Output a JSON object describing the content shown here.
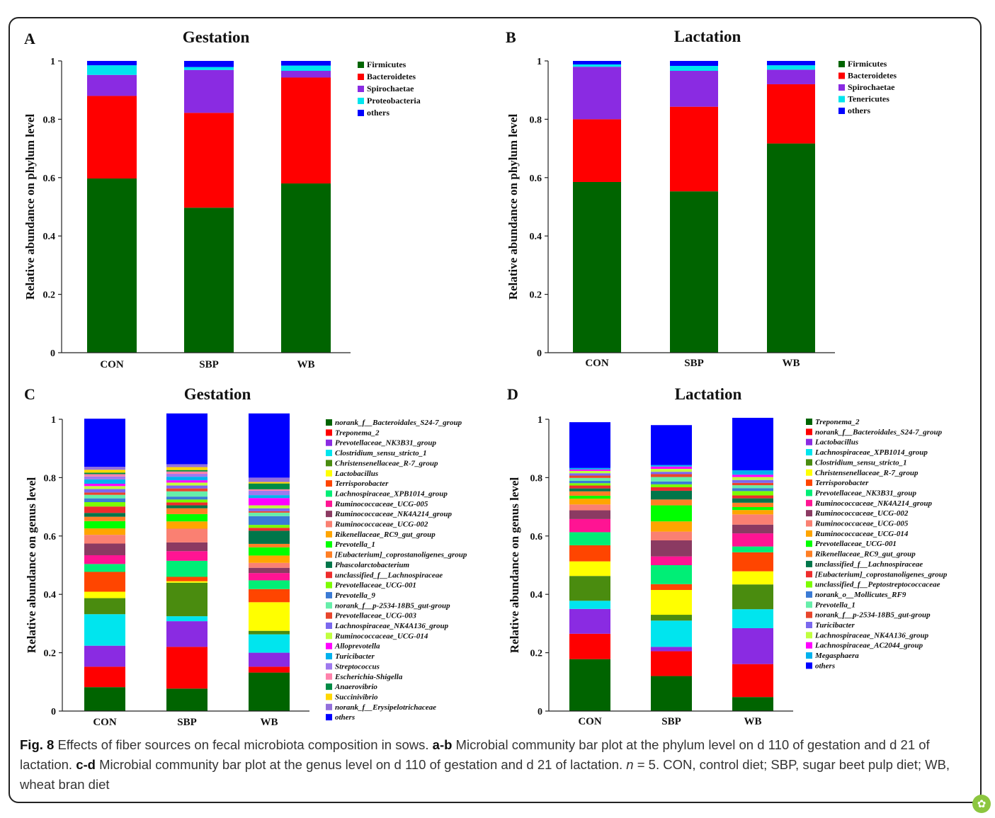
{
  "caption": {
    "fig": "Fig. 8",
    "t1": " Effects of fiber sources on fecal microbiota composition in sows. ",
    "ab": "a-b",
    "t2": " Microbial community bar plot at the phylum level on d 110 of gestation and d 21 of lactation. ",
    "cd": "c-d",
    "t3": " Microbial community bar plot at the genus level on d 110 of gestation and d 21 of lactation. ",
    "n": "n",
    "t4": " = 5. CON, control diet; SBP, sugar beet pulp diet; WB, wheat bran diet"
  },
  "badge_icon": "springer-leaf-icon",
  "chart_data": [
    {
      "panel": "A",
      "type": "bar",
      "stacked": true,
      "title": "Gestation",
      "ylabel": "Relative abundance on phylum level",
      "ylim": [
        0,
        1
      ],
      "yticks": [
        "0",
        "0.2",
        "0.4",
        "0.6",
        "0.8",
        "1"
      ],
      "categories": [
        "CON",
        "SBP",
        "WB"
      ],
      "legend_italic": false,
      "legend_position": "right",
      "series": [
        {
          "name": "Firmicutes",
          "color": "#006400",
          "values": [
            0.597,
            0.497,
            0.58
          ]
        },
        {
          "name": "Bacteroidetes",
          "color": "#ff0000",
          "values": [
            0.283,
            0.325,
            0.363
          ]
        },
        {
          "name": "Spirochaetae",
          "color": "#8a2be2",
          "values": [
            0.072,
            0.147,
            0.023
          ]
        },
        {
          "name": "Proteobacteria",
          "color": "#00e5ee",
          "values": [
            0.033,
            0.01,
            0.018
          ]
        },
        {
          "name": "others",
          "color": "#0000ff",
          "values": [
            0.015,
            0.021,
            0.016
          ]
        }
      ]
    },
    {
      "panel": "B",
      "type": "bar",
      "stacked": true,
      "title": "Lactation",
      "ylabel": "Relative abundance on phylum level",
      "ylim": [
        0,
        1
      ],
      "yticks": [
        "0",
        "0.2",
        "0.4",
        "0.6",
        "0.8",
        "1"
      ],
      "categories": [
        "CON",
        "SBP",
        "WB"
      ],
      "legend_italic": false,
      "legend_position": "right",
      "series": [
        {
          "name": "Firmicutes",
          "color": "#006400",
          "values": [
            0.585,
            0.553,
            0.717
          ]
        },
        {
          "name": "Bacteroidetes",
          "color": "#ff0000",
          "values": [
            0.215,
            0.29,
            0.203
          ]
        },
        {
          "name": "Spirochaetae",
          "color": "#8a2be2",
          "values": [
            0.18,
            0.123,
            0.05
          ]
        },
        {
          "name": "Tenericutes",
          "color": "#00e5ee",
          "values": [
            0.008,
            0.017,
            0.015
          ]
        },
        {
          "name": "others",
          "color": "#0000ff",
          "values": [
            0.012,
            0.017,
            0.015
          ]
        }
      ]
    },
    {
      "panel": "C",
      "type": "bar",
      "stacked": true,
      "title": "Gestation",
      "ylabel": "Relative abundance on genus level",
      "ylim": [
        0,
        1
      ],
      "yticks": [
        "0",
        "0.2",
        "0.4",
        "0.6",
        "0.8",
        "1"
      ],
      "categories": [
        "CON",
        "SBP",
        "WB"
      ],
      "legend_italic": true,
      "legend_position": "right",
      "series": [
        {
          "name": "norank_f__Bacteroidales_S24-7_group",
          "color": "#006400",
          "values": [
            0.082,
            0.077,
            0.132
          ]
        },
        {
          "name": "Treponema_2",
          "color": "#ff0000",
          "values": [
            0.07,
            0.143,
            0.02
          ]
        },
        {
          "name": "Prevotellaceae_NK3B31_group",
          "color": "#8a2be2",
          "values": [
            0.072,
            0.088,
            0.048
          ]
        },
        {
          "name": "Clostridium_sensu_stricto_1",
          "color": "#00e5ee",
          "values": [
            0.108,
            0.017,
            0.063
          ]
        },
        {
          "name": "Christensenellaceae_R-7_group",
          "color": "#4a8c0f",
          "values": [
            0.055,
            0.115,
            0.012
          ]
        },
        {
          "name": "Lactobacillus",
          "color": "#ffff00",
          "values": [
            0.022,
            0.005,
            0.098
          ]
        },
        {
          "name": "Terrisporobacter",
          "color": "#ff4500",
          "values": [
            0.068,
            0.015,
            0.045
          ]
        },
        {
          "name": "Lachnospiraceae_XPB1014_group",
          "color": "#00ee76",
          "values": [
            0.027,
            0.055,
            0.03
          ]
        },
        {
          "name": "Ruminococcaceae_UCG-005",
          "color": "#ff1493",
          "values": [
            0.03,
            0.033,
            0.025
          ]
        },
        {
          "name": "Ruminococcaceae_NK4A214_group",
          "color": "#8b3a62",
          "values": [
            0.04,
            0.03,
            0.018
          ]
        },
        {
          "name": "Ruminococcaceae_UCG-002",
          "color": "#fa8072",
          "values": [
            0.03,
            0.047,
            0.017
          ]
        },
        {
          "name": "Rikenellaceae_RC9_gut_group",
          "color": "#ffa500",
          "values": [
            0.022,
            0.025,
            0.025
          ]
        },
        {
          "name": "Prevotella_1",
          "color": "#00ff00",
          "values": [
            0.025,
            0.025,
            0.028
          ]
        },
        {
          "name": "[Eubacterium]_coprostanoligenes_group",
          "color": "#ff7f24",
          "values": [
            0.015,
            0.02,
            0.012
          ]
        },
        {
          "name": "Phascolarctobacterium",
          "color": "#00764a",
          "values": [
            0.013,
            0.01,
            0.045
          ]
        },
        {
          "name": "unclassified_f__Lachnospiraceae",
          "color": "#ee2c2c",
          "values": [
            0.022,
            0.01,
            0.01
          ]
        },
        {
          "name": "Prevotellaceae_UCG-001",
          "color": "#7cfc00",
          "values": [
            0.015,
            0.01,
            0.01
          ]
        },
        {
          "name": "Prevotella_9",
          "color": "#3a7bd5",
          "values": [
            0.013,
            0.01,
            0.03
          ]
        },
        {
          "name": "norank_f__p-2534-18B5_gut-group",
          "color": "#66eeaa",
          "values": [
            0.012,
            0.018,
            0.012
          ]
        },
        {
          "name": "Prevotellaceae_UCG-003",
          "color": "#e8452c",
          "values": [
            0.008,
            0.01,
            0.005
          ]
        },
        {
          "name": "Lachnospiraceae_NK4A136_group",
          "color": "#7b68ee",
          "values": [
            0.012,
            0.01,
            0.01
          ]
        },
        {
          "name": "Ruminococcaceae_UCG-014",
          "color": "#c0ff3e",
          "values": [
            0.01,
            0.01,
            0.01
          ]
        },
        {
          "name": "Alloprevotella",
          "color": "#ff00ff",
          "values": [
            0.008,
            0.008,
            0.025
          ]
        },
        {
          "name": "Turicibacter",
          "color": "#00b2ee",
          "values": [
            0.015,
            0.012,
            0.01
          ]
        },
        {
          "name": "Streptococcus",
          "color": "#9f79ee",
          "values": [
            0.01,
            0.01,
            0.015
          ]
        },
        {
          "name": "Escherichia-Shigella",
          "color": "#ff82ab",
          "values": [
            0.008,
            0.008,
            0.005
          ]
        },
        {
          "name": "Anaerovibrio",
          "color": "#008b45",
          "values": [
            0.005,
            0.005,
            0.02
          ]
        },
        {
          "name": "Succinivibrio",
          "color": "#ffd700",
          "values": [
            0.01,
            0.01,
            0.005
          ]
        },
        {
          "name": "norank_f__Erysipelotrichaceae",
          "color": "#9370db",
          "values": [
            0.01,
            0.01,
            0.015
          ]
        },
        {
          "name": "others",
          "color": "#0000ff",
          "values": [
            0.165,
            0.174,
            0.22
          ]
        }
      ]
    },
    {
      "panel": "D",
      "type": "bar",
      "stacked": true,
      "title": "Lactation",
      "ylabel": "Relative abundance on genus level",
      "ylim": [
        0,
        1
      ],
      "yticks": [
        "0",
        "0.2",
        "0.4",
        "0.6",
        "0.8",
        "1"
      ],
      "categories": [
        "CON",
        "SBP",
        "WB"
      ],
      "legend_italic": true,
      "legend_position": "right",
      "series": [
        {
          "name": "Treponema_2",
          "color": "#006400",
          "values": [
            0.178,
            0.12,
            0.048
          ]
        },
        {
          "name": "norank_f__Bacteroidales_S24-7_group",
          "color": "#ff0000",
          "values": [
            0.087,
            0.085,
            0.113
          ]
        },
        {
          "name": "Lactobacillus",
          "color": "#8a2be2",
          "values": [
            0.085,
            0.015,
            0.123
          ]
        },
        {
          "name": "Lachnospiraceae_XPB1014_group",
          "color": "#00e5ee",
          "values": [
            0.028,
            0.09,
            0.065
          ]
        },
        {
          "name": "Clostridium_sensu_stricto_1",
          "color": "#4a8c0f",
          "values": [
            0.085,
            0.02,
            0.085
          ]
        },
        {
          "name": "Christensenellaceae_R-7_group",
          "color": "#ffff00",
          "values": [
            0.05,
            0.085,
            0.045
          ]
        },
        {
          "name": "Terrisporobacter",
          "color": "#ff4500",
          "values": [
            0.055,
            0.02,
            0.065
          ]
        },
        {
          "name": "Prevotellaceae_NK3B31_group",
          "color": "#00ee76",
          "values": [
            0.045,
            0.065,
            0.02
          ]
        },
        {
          "name": "Ruminococcaceae_NK4A214_group",
          "color": "#ff1493",
          "values": [
            0.045,
            0.03,
            0.045
          ]
        },
        {
          "name": "Ruminococcaceae_UCG-002",
          "color": "#8b3a62",
          "values": [
            0.03,
            0.055,
            0.03
          ]
        },
        {
          "name": "Ruminococcaceae_UCG-005",
          "color": "#fa8072",
          "values": [
            0.02,
            0.03,
            0.035
          ]
        },
        {
          "name": "Ruminococcaceae_UCG-014",
          "color": "#ffa500",
          "values": [
            0.02,
            0.035,
            0.015
          ]
        },
        {
          "name": "Prevotellaceae_UCG-001",
          "color": "#00ff00",
          "values": [
            0.01,
            0.055,
            0.01
          ]
        },
        {
          "name": "Rikenellaceae_RC9_gut_group",
          "color": "#ff7f24",
          "values": [
            0.015,
            0.02,
            0.015
          ]
        },
        {
          "name": "unclassified_f__Lachnospiraceae",
          "color": "#00764a",
          "values": [
            0.01,
            0.03,
            0.015
          ]
        },
        {
          "name": "[Eubacterium]_coprostanoligenes_group",
          "color": "#ee2c2c",
          "values": [
            0.01,
            0.012,
            0.01
          ]
        },
        {
          "name": "unclassified_f__Peptostreptococcaceae",
          "color": "#7cfc00",
          "values": [
            0.008,
            0.01,
            0.015
          ]
        },
        {
          "name": "norank_o__Mollicutes_RF9",
          "color": "#3a7bd5",
          "values": [
            0.008,
            0.01,
            0.01
          ]
        },
        {
          "name": "Prevotella_1",
          "color": "#66eeaa",
          "values": [
            0.01,
            0.015,
            0.01
          ]
        },
        {
          "name": "norank_f__p-2534-18B5_gut-group",
          "color": "#e8452c",
          "values": [
            0.008,
            0.01,
            0.008
          ]
        },
        {
          "name": "Turicibacter",
          "color": "#7b68ee",
          "values": [
            0.008,
            0.008,
            0.01
          ]
        },
        {
          "name": "Lachnospiraceae_NK4A136_group",
          "color": "#c0ff3e",
          "values": [
            0.008,
            0.01,
            0.01
          ]
        },
        {
          "name": "Lachnospiraceae_AC2044_group",
          "color": "#ff00ff",
          "values": [
            0.005,
            0.008,
            0.008
          ]
        },
        {
          "name": "Megasphaera",
          "color": "#00b2ee",
          "values": [
            0.005,
            0.005,
            0.015
          ]
        },
        {
          "name": "others",
          "color": "#0000ff",
          "values": [
            0.157,
            0.137,
            0.18
          ]
        }
      ]
    }
  ]
}
